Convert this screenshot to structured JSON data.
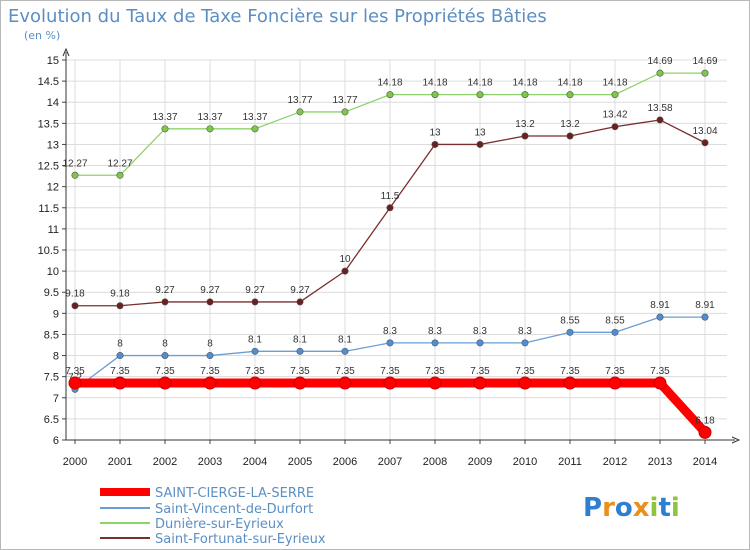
{
  "chart_data": {
    "type": "line",
    "title": "Evolution du Taux de Taxe Foncière sur les Propriétés Bâties",
    "subtitle": "(en %)",
    "x": [
      "2000",
      "2001",
      "2002",
      "2003",
      "2004",
      "2005",
      "2006",
      "2007",
      "2008",
      "2009",
      "2010",
      "2011",
      "2012",
      "2013",
      "2014"
    ],
    "ylim": [
      6,
      15
    ],
    "yticks": [
      "6",
      "6.5",
      "7",
      "7.5",
      "8",
      "8.5",
      "9",
      "9.5",
      "10",
      "10.5",
      "11",
      "11.5",
      "12",
      "12.5",
      "13",
      "13.5",
      "14",
      "14.5",
      "15"
    ],
    "grid": true,
    "series": [
      {
        "name": "SAINT-CIERGE-LA-SERRE",
        "color": "#ff0000",
        "marker_color": "#ff0000",
        "values": [
          7.35,
          7.35,
          7.35,
          7.35,
          7.35,
          7.35,
          7.35,
          7.35,
          7.35,
          7.35,
          7.35,
          7.35,
          7.35,
          7.35,
          6.18
        ],
        "labels": [
          "7.35",
          "7.35",
          "7.35",
          "7.35",
          "7.35",
          "7.35",
          "7.35",
          "7.35",
          "7.35",
          "7.35",
          "7.35",
          "7.35",
          "7.35",
          "7.35",
          "6.18"
        ]
      },
      {
        "name": "Saint-Vincent-de-Durfort",
        "color": "#6a9fd4",
        "marker_color": "#4d8fd6",
        "values": [
          7.2,
          8,
          8,
          8,
          8.1,
          8.1,
          8.1,
          8.3,
          8.3,
          8.3,
          8.3,
          8.55,
          8.55,
          8.91,
          8.91
        ],
        "labels": [
          "7.2",
          "8",
          "8",
          "8",
          "8.1",
          "8.1",
          "8.1",
          "8.3",
          "8.3",
          "8.3",
          "8.3",
          "8.55",
          "8.55",
          "8.91",
          "8.91"
        ]
      },
      {
        "name": "Dunière-sur-Eyrieux",
        "color": "#8ed36a",
        "marker_color": "#7cc94a",
        "values": [
          12.27,
          12.27,
          13.37,
          13.37,
          13.37,
          13.77,
          13.77,
          14.18,
          14.18,
          14.18,
          14.18,
          14.18,
          14.18,
          14.69,
          14.69
        ],
        "labels": [
          "12.27",
          "12.27",
          "13.37",
          "13.37",
          "13.37",
          "13.77",
          "13.77",
          "14.18",
          "14.18",
          "14.18",
          "14.18",
          "14.18",
          "14.18",
          "14.69",
          "14.69"
        ]
      },
      {
        "name": "Saint-Fortunat-sur-Eyrieux",
        "color": "#7a2e2e",
        "marker_color": "#6b1f1f",
        "values": [
          9.18,
          9.18,
          9.27,
          9.27,
          9.27,
          9.27,
          10,
          11.5,
          13,
          13,
          13.2,
          13.2,
          13.42,
          13.58,
          13.04
        ],
        "labels": [
          "9.18",
          "9.18",
          "9.27",
          "9.27",
          "9.27",
          "9.27",
          "10",
          "11.5",
          "13",
          "13",
          "13.2",
          "13.2",
          "13.42",
          "13.58",
          "13.04"
        ]
      }
    ],
    "legend_position": "bottom-left"
  },
  "logo": {
    "text": "Proxiti"
  }
}
